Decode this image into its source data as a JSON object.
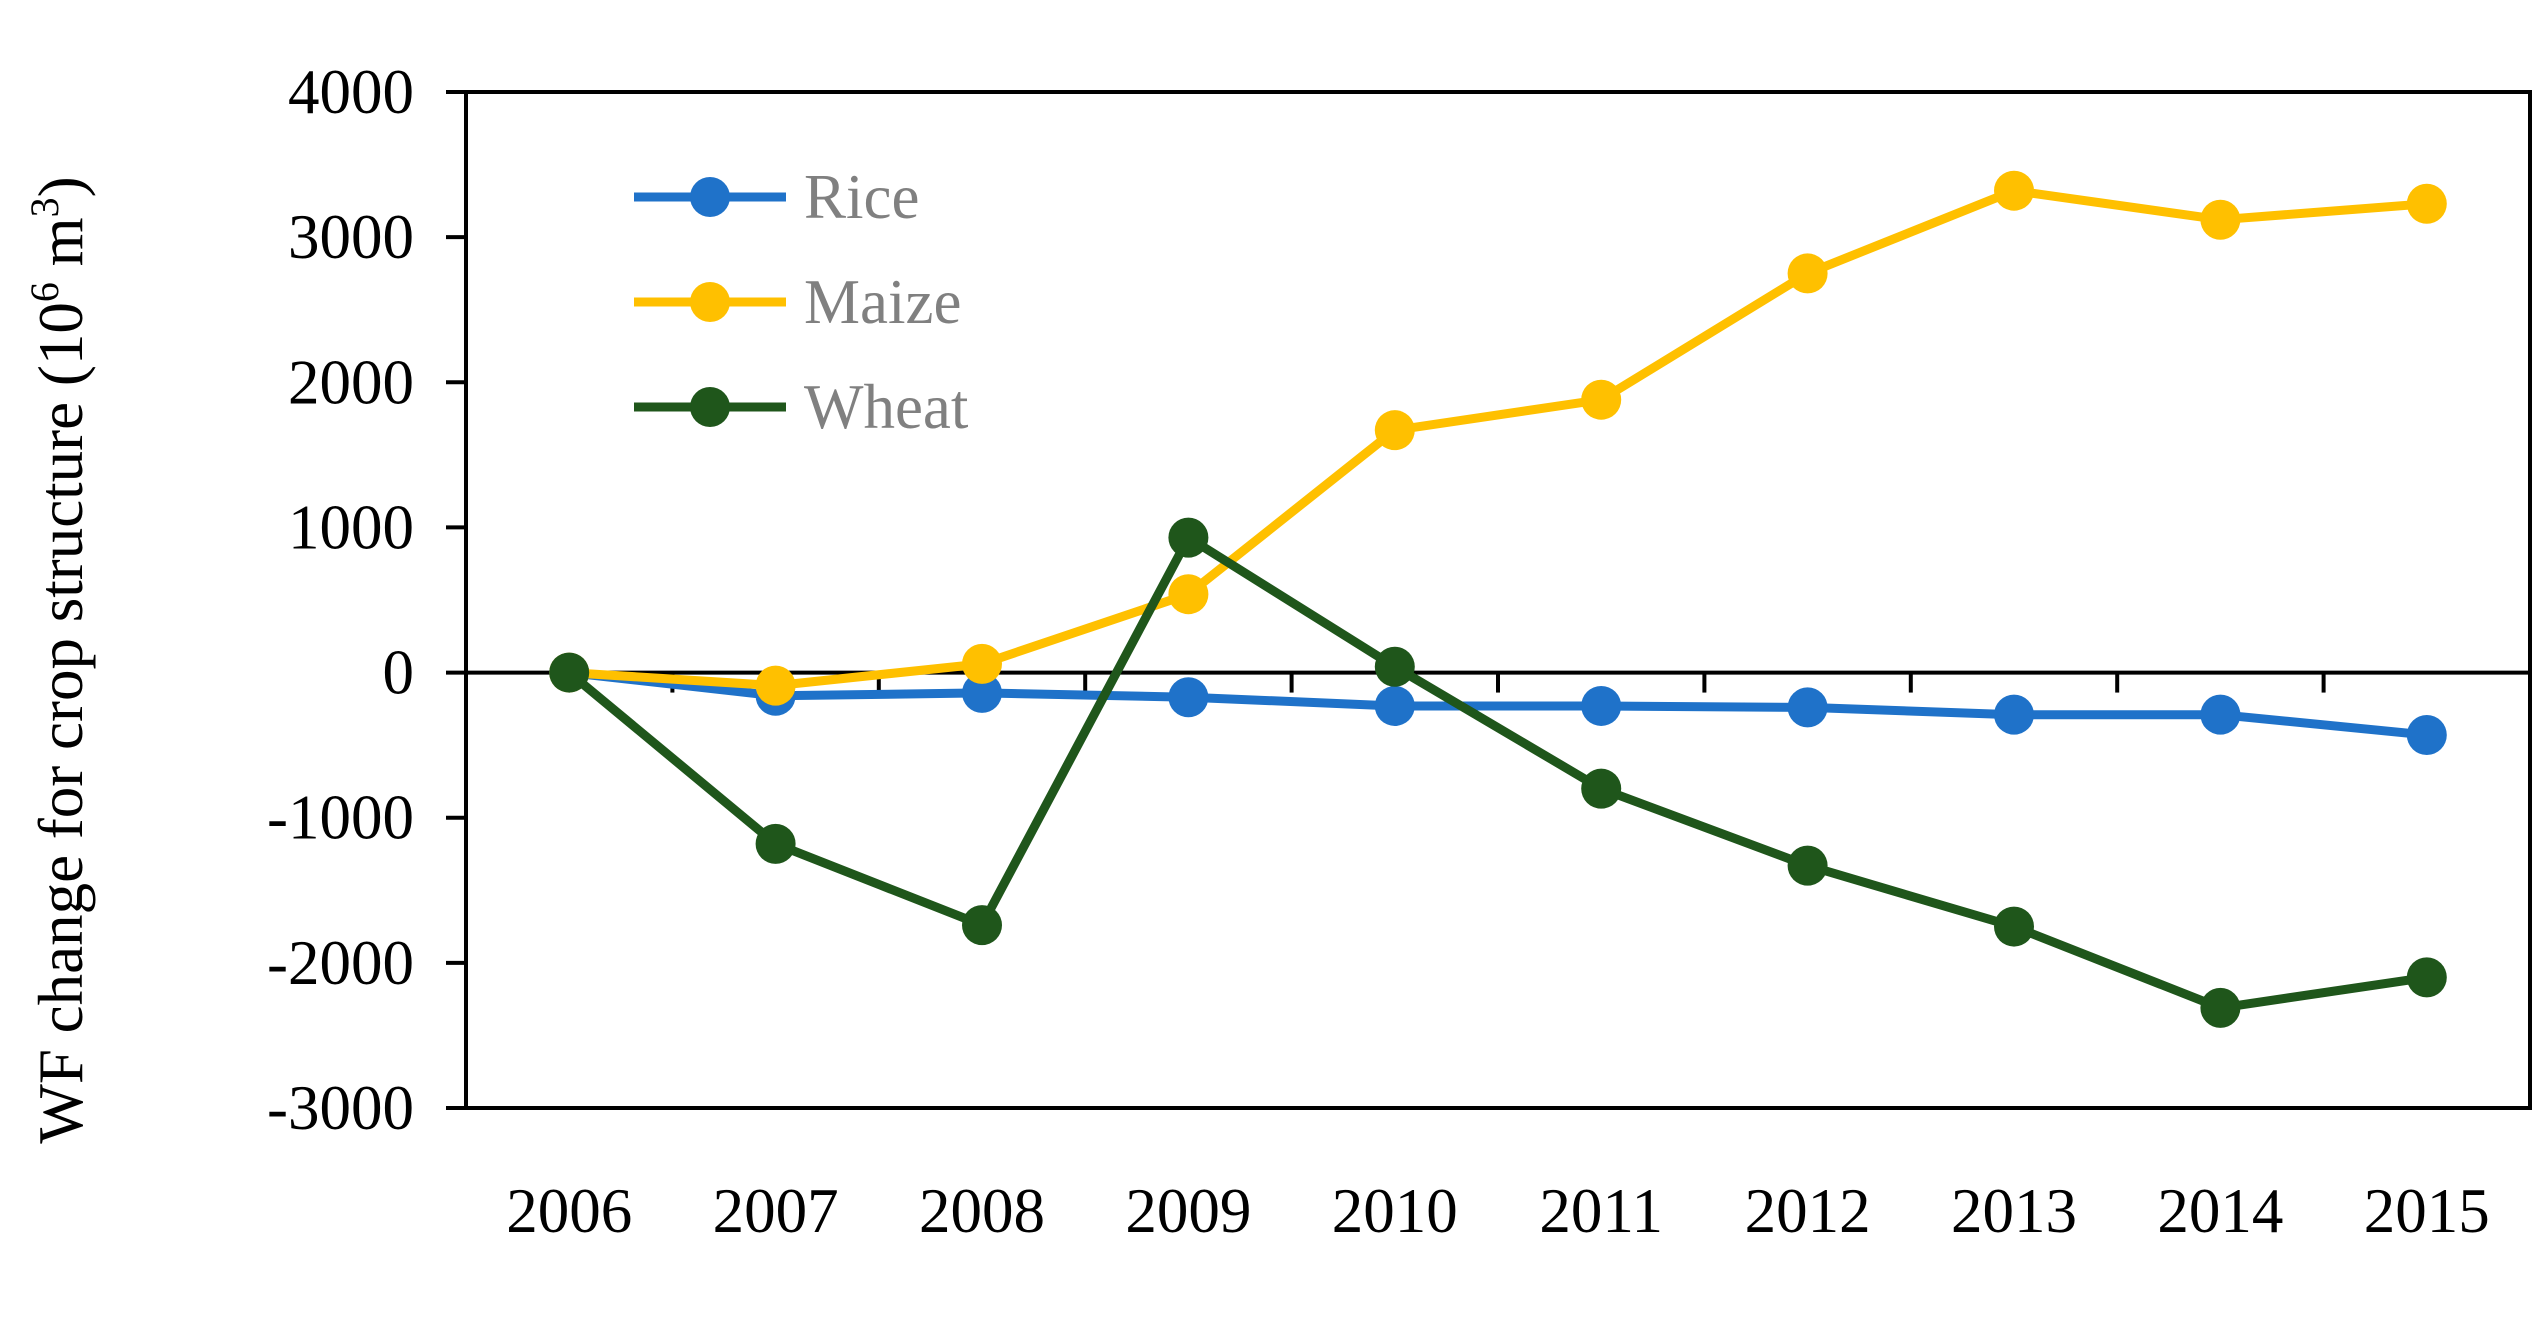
{
  "chart_data": {
    "type": "line",
    "title": "",
    "xlabel": "",
    "ylabel_parts": [
      "WF change for crop structure (10",
      "6",
      " m",
      "3",
      ")"
    ],
    "categories": [
      "2006",
      "2007",
      "2008",
      "2009",
      "2010",
      "2011",
      "2012",
      "2013",
      "2014",
      "2015"
    ],
    "ylim": [
      -3000,
      4000
    ],
    "yticks": [
      -3000,
      -2000,
      -1000,
      0,
      1000,
      2000,
      3000,
      4000
    ],
    "grid": false,
    "legend_position": "top-left",
    "series": [
      {
        "name": "Rice",
        "color": "#1F72C9",
        "values": [
          0,
          -160,
          -140,
          -170,
          -230,
          -230,
          -240,
          -290,
          -290,
          -430
        ]
      },
      {
        "name": "Maize",
        "color": "#FFC000",
        "values": [
          0,
          -90,
          60,
          540,
          1670,
          1880,
          2750,
          3320,
          3120,
          3230
        ]
      },
      {
        "name": "Wheat",
        "color": "#1F561B",
        "values": [
          0,
          -1180,
          -1740,
          930,
          40,
          -800,
          -1330,
          -1750,
          -2310,
          -2100
        ]
      }
    ]
  }
}
